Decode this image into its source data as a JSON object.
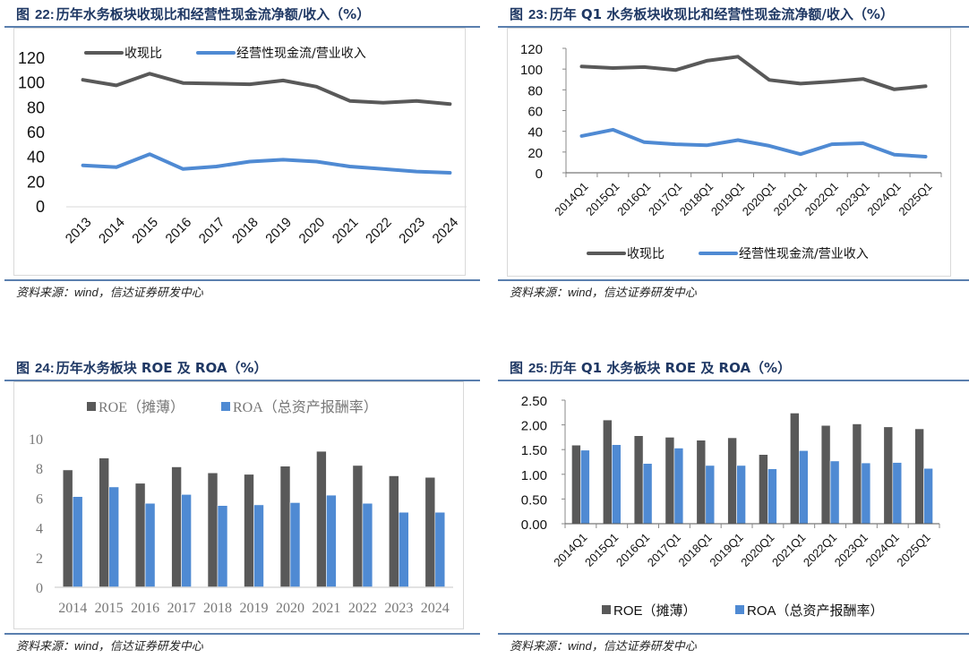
{
  "colors": {
    "title": "#1f3864",
    "rule": "#5a7fae",
    "series_dark": "#595959",
    "series_blue": "#4f8ad3",
    "frame": "#d9d9d9"
  },
  "figures": [
    {
      "id": "fig22",
      "prefix": "图",
      "number": "22:",
      "title": "历年水务板块收现比和经营性现金流净额/收入（%）",
      "source_prefix": "资料来源：",
      "source_wind": "wind",
      "source_suffix": "，信达证券研发中心"
    },
    {
      "id": "fig23",
      "prefix": "图",
      "number": "23:",
      "title": "历年 Q1 水务板块收现比和经营性现金流净额/收入（%）",
      "source_prefix": "资料来源：",
      "source_wind": "wind",
      "source_suffix": "，信达证券研发中心"
    },
    {
      "id": "fig24",
      "prefix": "图",
      "number": "24:",
      "title": "历年水务板块 ROE 及 ROA（%）",
      "source_prefix": "资料来源：",
      "source_wind": "wind",
      "source_suffix": "，信达证券研发中心"
    },
    {
      "id": "fig25",
      "prefix": "图",
      "number": "25:",
      "title": "历年 Q1 水务板块 ROE 及 ROA（%）",
      "source_prefix": "资料来源：",
      "source_wind": "wind",
      "source_suffix": "，信达证券研发中心"
    }
  ],
  "chart_data": [
    {
      "type": "line",
      "title": "图 22: 历年水务板块收现比和经营性现金流净额/收入（%）",
      "xlabel": "",
      "ylabel": "",
      "categories": [
        "2013",
        "2014",
        "2015",
        "2016",
        "2017",
        "2018",
        "2019",
        "2020",
        "2021",
        "2022",
        "2023",
        "2024"
      ],
      "series": [
        {
          "name": "收现比",
          "color": "#595959",
          "values": [
            102.5,
            98,
            107.5,
            100,
            99.5,
            99,
            102,
            97,
            85.5,
            84,
            85.5,
            83
          ]
        },
        {
          "name": "经营性现金流/营业收入",
          "color": "#4f8ad3",
          "values": [
            33.5,
            32,
            42.5,
            30.5,
            32.5,
            36.5,
            38,
            36.5,
            32.5,
            30.5,
            28.5,
            27.5
          ]
        }
      ],
      "ylim": [
        0,
        120
      ],
      "yticks": [
        "0",
        "20",
        "40",
        "60",
        "80",
        "100",
        "120"
      ],
      "grid": false,
      "legend_position": "top",
      "x_label_rotation": -45
    },
    {
      "type": "line",
      "title": "图 23: 历年 Q1 水务板块收现比和经营性现金流净额/收入（%）",
      "xlabel": "",
      "ylabel": "",
      "categories": [
        "2014Q1",
        "2015Q1",
        "2016Q1",
        "2017Q1",
        "2018Q1",
        "2019Q1",
        "2020Q1",
        "2021Q1",
        "2022Q1",
        "2023Q1",
        "2024Q1",
        "2025Q1"
      ],
      "series": [
        {
          "name": "收现比",
          "color": "#595959",
          "values": [
            102.5,
            101,
            102,
            99,
            108,
            112,
            89.5,
            86,
            88,
            90.5,
            80.5,
            83.5
          ]
        },
        {
          "name": "经营性现金流/营业收入",
          "color": "#4f8ad3",
          "values": [
            35.5,
            41.5,
            29.5,
            27.5,
            26.5,
            31.5,
            26,
            18,
            27.5,
            28.5,
            17.5,
            15.5
          ]
        }
      ],
      "ylim": [
        0,
        120
      ],
      "yticks": [
        "0",
        "20",
        "40",
        "60",
        "80",
        "100",
        "120"
      ],
      "grid": false,
      "legend_position": "bottom",
      "x_label_rotation": -45
    },
    {
      "type": "bar",
      "title": "图 24: 历年水务板块 ROE 及 ROA（%）",
      "xlabel": "",
      "ylabel": "",
      "categories": [
        "2014",
        "2015",
        "2016",
        "2017",
        "2018",
        "2019",
        "2020",
        "2021",
        "2022",
        "2023",
        "2024"
      ],
      "series": [
        {
          "name": "ROE（摊薄）",
          "color": "#595959",
          "values": [
            7.9,
            8.7,
            7.0,
            8.1,
            7.7,
            7.6,
            8.15,
            9.15,
            8.2,
            7.5,
            7.4
          ]
        },
        {
          "name": "ROA（总资产报酬率）",
          "color": "#4f8ad3",
          "values": [
            6.1,
            6.75,
            5.65,
            6.25,
            5.5,
            5.55,
            5.7,
            6.2,
            5.65,
            5.05,
            5.05
          ]
        }
      ],
      "ylim": [
        0,
        10
      ],
      "yticks": [
        "0",
        "2",
        "4",
        "6",
        "8",
        "10"
      ],
      "grid": false,
      "legend_position": "top"
    },
    {
      "type": "bar",
      "title": "图 25: 历年 Q1 水务板块 ROE 及 ROA（%）",
      "xlabel": "",
      "ylabel": "",
      "categories": [
        "2014Q1",
        "2015Q1",
        "2016Q1",
        "2017Q1",
        "2018Q1",
        "2019Q1",
        "2020Q1",
        "2021Q1",
        "2022Q1",
        "2023Q1",
        "2024Q1",
        "2025Q1"
      ],
      "series": [
        {
          "name": "ROE（摊薄）",
          "color": "#595959",
          "values": [
            1.59,
            2.1,
            1.78,
            1.75,
            1.69,
            1.74,
            1.4,
            2.24,
            1.99,
            2.02,
            1.96,
            1.92
          ]
        },
        {
          "name": "ROA（总资产报酬率）",
          "color": "#4f8ad3",
          "values": [
            1.49,
            1.6,
            1.22,
            1.53,
            1.18,
            1.18,
            1.11,
            1.48,
            1.27,
            1.23,
            1.24,
            1.12
          ]
        }
      ],
      "ylim": [
        0,
        2.5
      ],
      "yticks": [
        "0.00",
        "0.50",
        "1.00",
        "1.50",
        "2.00",
        "2.50"
      ],
      "grid": false,
      "legend_position": "bottom",
      "x_label_rotation": -45
    }
  ]
}
